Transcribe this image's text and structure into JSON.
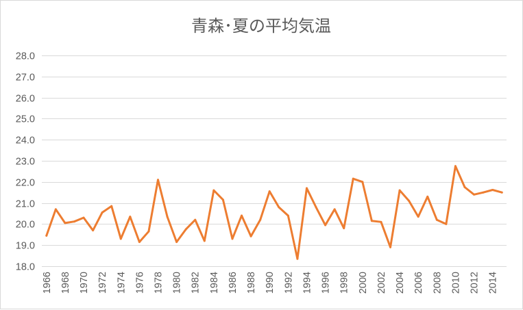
{
  "chart_data": {
    "type": "line",
    "title": "青森･夏の平均気温",
    "xlabel": "",
    "ylabel": "",
    "ylim": [
      18.0,
      28.0
    ],
    "yticks": [
      "18.0",
      "19.0",
      "20.0",
      "21.0",
      "22.0",
      "23.0",
      "24.0",
      "25.0",
      "26.0",
      "27.0",
      "28.0"
    ],
    "x": [
      1966,
      1967,
      1968,
      1969,
      1970,
      1971,
      1972,
      1973,
      1974,
      1975,
      1976,
      1977,
      1978,
      1979,
      1980,
      1981,
      1982,
      1983,
      1984,
      1985,
      1986,
      1987,
      1988,
      1989,
      1990,
      1991,
      1992,
      1993,
      1994,
      1995,
      1996,
      1997,
      1998,
      1999,
      2000,
      2001,
      2002,
      2003,
      2004,
      2005,
      2006,
      2007,
      2008,
      2009,
      2010,
      2011,
      2012,
      2013,
      2014,
      2015
    ],
    "xtick_labels": [
      "1966",
      "1968",
      "1970",
      "1972",
      "1974",
      "1976",
      "1978",
      "1980",
      "1982",
      "1984",
      "1986",
      "1988",
      "1990",
      "1992",
      "1994",
      "1996",
      "1998",
      "2000",
      "2002",
      "2004",
      "2006",
      "2008",
      "2010",
      "2012",
      "2014"
    ],
    "grid": true,
    "legend": "none",
    "series": [
      {
        "name": "夏の平均気温",
        "color": "#ed7d31",
        "values": [
          19.45,
          20.7,
          20.05,
          20.12,
          20.3,
          19.7,
          20.55,
          20.85,
          19.3,
          20.35,
          19.15,
          19.65,
          22.1,
          20.35,
          19.15,
          19.75,
          20.2,
          19.2,
          21.6,
          21.15,
          19.3,
          20.4,
          19.42,
          20.2,
          21.55,
          20.8,
          20.4,
          18.35,
          21.7,
          20.8,
          19.95,
          20.7,
          19.8,
          22.15,
          22.0,
          20.15,
          20.1,
          18.9,
          21.6,
          21.1,
          20.35,
          21.3,
          20.2,
          20.0,
          22.75,
          21.75,
          21.4,
          21.5,
          21.62,
          21.5
        ]
      }
    ]
  }
}
